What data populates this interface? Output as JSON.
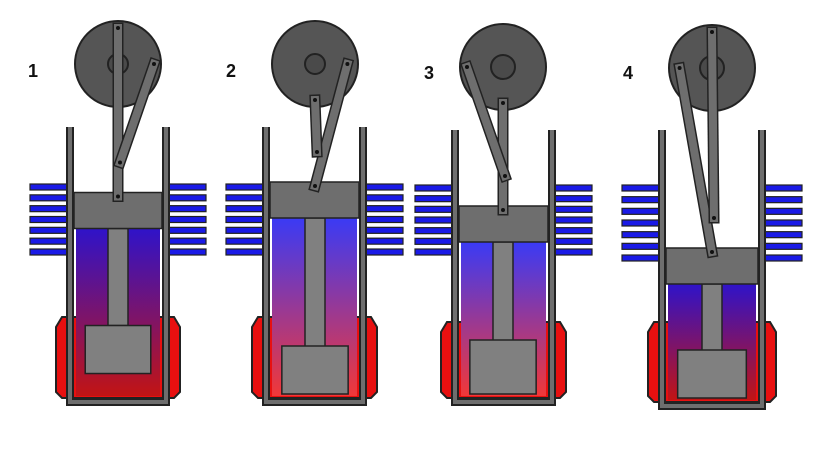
{
  "diagram": {
    "panels": [
      {
        "label": "1",
        "phase_crank_angle_deg": 0,
        "displacer_fraction": 0.55,
        "power_piston_fraction": 0.15,
        "gas_gradient": [
          "#2f13c9",
          "#c21414"
        ]
      },
      {
        "label": "2",
        "phase_crank_angle_deg": 90,
        "displacer_fraction": 0.95,
        "power_piston_fraction": 0.0,
        "gas_gradient": [
          "#3a3af5",
          "#f23838"
        ]
      },
      {
        "label": "3",
        "phase_crank_angle_deg": 180,
        "displacer_fraction": 0.9,
        "power_piston_fraction": 0.3,
        "gas_gradient": [
          "#3a3af5",
          "#f23838"
        ]
      },
      {
        "label": "4",
        "phase_crank_angle_deg": 270,
        "displacer_fraction": 0.2,
        "power_piston_fraction": 0.9,
        "gas_gradient": [
          "#2f13c9",
          "#c21414"
        ]
      }
    ],
    "colors": {
      "cold_fins": "#1a1ae6",
      "hot_jacket": "#e81010",
      "metal": "#6e6e6e",
      "displacer": "#808080",
      "flywheel": "#555555",
      "outline": "#222222"
    }
  }
}
